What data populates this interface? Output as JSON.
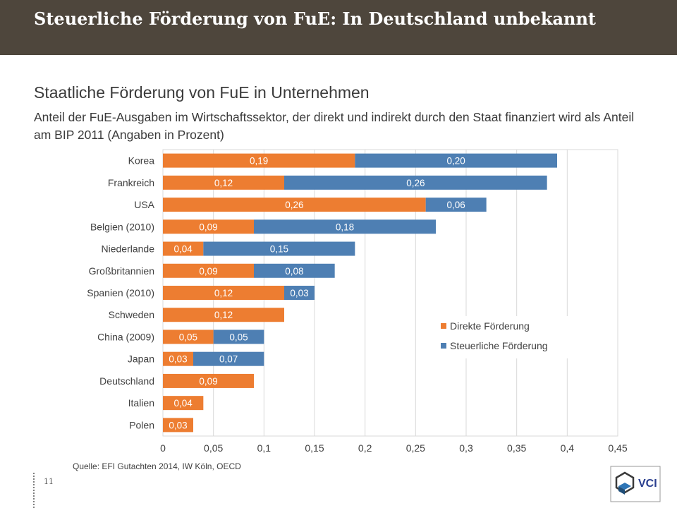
{
  "header": {
    "title": "Steuerliche Förderung von FuE: In Deutschland unbekannt"
  },
  "slide": {
    "title": "Staatliche Förderung von FuE in Unternehmen",
    "subtitle": "Anteil der FuE-Ausgaben im Wirtschaftssektor, der direkt und indirekt durch den Staat finanziert wird als Anteil am BIP 2011 (Angaben in Prozent)"
  },
  "chart_data": {
    "type": "bar",
    "orientation": "horizontal",
    "stacked": true,
    "categories": [
      "Korea",
      "Frankreich",
      "USA",
      "Belgien (2010)",
      "Niederlande",
      "Großbritannien",
      "Spanien (2010)",
      "Schweden",
      "China (2009)",
      "Japan",
      "Deutschland",
      "Italien",
      "Polen"
    ],
    "series": [
      {
        "name": "Direkte Förderung",
        "color": "#ed7d31",
        "values": [
          0.19,
          0.12,
          0.26,
          0.09,
          0.04,
          0.09,
          0.12,
          0.12,
          0.05,
          0.03,
          0.09,
          0.04,
          0.03
        ],
        "labels": [
          "0,19",
          "0,12",
          "0,26",
          "0,09",
          "0,04",
          "0,09",
          "0,12",
          "0,12",
          "0,05",
          "0,03",
          "0,09",
          "0,04",
          "0,03"
        ]
      },
      {
        "name": "Steuerliche Förderung",
        "color": "#4e7fb3",
        "values": [
          0.2,
          0.26,
          0.06,
          0.18,
          0.15,
          0.08,
          0.03,
          0,
          0.05,
          0.07,
          0,
          0,
          0
        ],
        "labels": [
          "0,20",
          "0,26",
          "0,06",
          "0,18",
          "0,15",
          "0,08",
          "0,03",
          "",
          "0,05",
          "0,07",
          "",
          "",
          ""
        ]
      }
    ],
    "xlim": [
      0,
      0.45
    ],
    "xticks": [
      "0",
      "0,05",
      "0,1",
      "0,15",
      "0,2",
      "0,25",
      "0,3",
      "0,35",
      "0,4",
      "0,45"
    ],
    "grid": true,
    "legend_position": "inside-right"
  },
  "source": "Quelle: EFI Gutachten 2014, IW Köln, OECD",
  "page_number": "11",
  "logo": {
    "text": "VCI"
  }
}
